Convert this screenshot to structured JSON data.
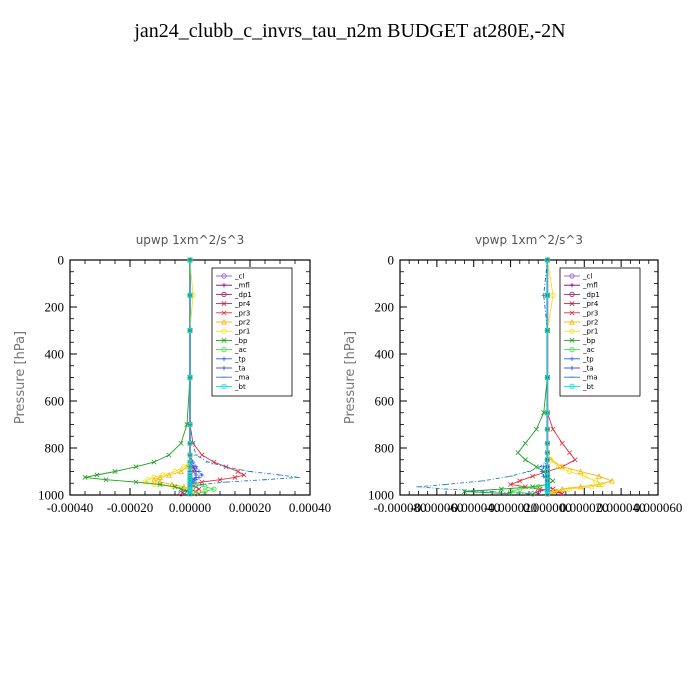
{
  "title": "jan24_clubb_c_invrs_tau_n2m  BUDGET at280E,-2N",
  "legend_entries": [
    "_cl",
    "_mfl",
    "_dp1",
    "_pr4",
    "_pr3",
    "_pr2",
    "_pr1",
    "_bp",
    "_ac",
    "_tp",
    "_ta",
    "_ma",
    "_bt"
  ],
  "series_colors": [
    "#9b59d0",
    "#800080",
    "#a0206a",
    "#c02040",
    "#e03040",
    "#ffb000",
    "#f0e020",
    "#20a020",
    "#40e040",
    "#2060ff",
    "#4040e0",
    "#2080c0",
    "#00e0e0"
  ],
  "chart_data": [
    {
      "type": "line",
      "title": "upwp   1xm^2/s^3",
      "ylabel": "Pressure [hPa]",
      "ylim": [
        1000,
        0
      ],
      "xlim": [
        -0.0004,
        0.0004
      ],
      "yticks": [
        "0",
        "200",
        "400",
        "600",
        "800",
        "1000"
      ],
      "xticks": [
        "-0.00040",
        "-0.00020",
        "0.00000",
        "0.00020",
        "0.00040"
      ],
      "legend_position": "top-right",
      "y": [
        0,
        150,
        300,
        500,
        700,
        780,
        830,
        860,
        880,
        900,
        915,
        925,
        935,
        945,
        955,
        965,
        975,
        985,
        995
      ],
      "series": [
        {
          "name": "_cl",
          "values": [
            0,
            0,
            0,
            0,
            0,
            0,
            0,
            0,
            0,
            0,
            0,
            0,
            0,
            0,
            0,
            0,
            0,
            0,
            0
          ]
        },
        {
          "name": "_mfl",
          "values": [
            0,
            0,
            0,
            0,
            0,
            0,
            0,
            0,
            0,
            0,
            0,
            0,
            0,
            0,
            0,
            0,
            0,
            0,
            0
          ]
        },
        {
          "name": "_dp1",
          "values": [
            0,
            0,
            0,
            0,
            0,
            0,
            0,
            0,
            0,
            0,
            0,
            0,
            0,
            0,
            0,
            0,
            0,
            -2e-05,
            -3e-05
          ]
        },
        {
          "name": "_pr4",
          "values": [
            0,
            0,
            0,
            0,
            0,
            0,
            0,
            0,
            1e-05,
            1e-05,
            0,
            0,
            0,
            0,
            0,
            0,
            0,
            2e-05,
            3e-05
          ]
        },
        {
          "name": "_pr3",
          "values": [
            0,
            0,
            0,
            0,
            0,
            1e-05,
            4e-05,
            8e-05,
            0.00012,
            0.00016,
            0.00018,
            0.00015,
            0.0001,
            4e-05,
            0,
            2e-05,
            3e-05,
            2e-05,
            1e-05
          ]
        },
        {
          "name": "_pr2",
          "values": [
            0,
            0,
            0,
            0,
            0,
            0,
            0,
            0,
            -1e-05,
            -3e-05,
            -7e-05,
            -0.0001,
            -0.00012,
            -0.0001,
            -6e-05,
            -2e-05,
            0,
            0,
            0
          ]
        },
        {
          "name": "_pr1",
          "values": [
            0,
            1e-05,
            0,
            0,
            0,
            0,
            0,
            0,
            -2e-05,
            -5e-05,
            -9e-05,
            -0.00012,
            -0.00014,
            -0.00015,
            -0.00012,
            -5e-05,
            0,
            1e-05,
            0
          ]
        },
        {
          "name": "_bp",
          "values": [
            0,
            0,
            0,
            0,
            -1e-05,
            -3e-05,
            -7e-05,
            -0.00012,
            -0.00018,
            -0.00025,
            -0.00031,
            -0.00035,
            -0.00028,
            -0.00018,
            -0.0001,
            -5e-05,
            -3e-05,
            -1e-05,
            0
          ]
        },
        {
          "name": "_ac",
          "values": [
            0,
            0,
            0,
            0,
            0,
            0,
            0,
            0,
            0,
            0,
            0,
            0,
            0,
            0,
            2e-05,
            5e-05,
            8e-05,
            5e-05,
            2e-05
          ]
        },
        {
          "name": "_tp",
          "values": [
            0,
            0,
            0,
            0,
            0,
            0,
            0,
            1e-05,
            2e-05,
            3e-05,
            4e-05,
            3e-05,
            2e-05,
            1e-05,
            0,
            0,
            0,
            0,
            0
          ]
        },
        {
          "name": "_ta",
          "values": [
            0,
            0,
            0,
            0,
            0,
            0,
            0,
            0,
            1e-05,
            2e-05,
            2e-05,
            2e-05,
            1e-05,
            0,
            0,
            0,
            0,
            0,
            0
          ]
        },
        {
          "name": "_ma",
          "values": [
            0,
            0,
            0,
            0,
            0,
            1e-05,
            2e-05,
            6e-05,
            0.00012,
            0.0002,
            0.0003,
            0.00036,
            0.00025,
            0.00012,
            4e-05,
            1e-05,
            0,
            0,
            0
          ]
        },
        {
          "name": "_bt",
          "values": [
            0,
            0,
            0,
            0,
            0,
            0,
            0,
            0,
            0,
            0,
            0,
            0,
            0,
            0,
            0,
            0,
            0,
            0,
            0
          ]
        }
      ]
    },
    {
      "type": "line",
      "title": "vpwp   1xm^2/s^3",
      "ylabel": "Pressure [hPa]",
      "ylim": [
        1000,
        0
      ],
      "xlim": [
        -8e-05,
        6e-05
      ],
      "yticks": [
        "0",
        "200",
        "400",
        "600",
        "800",
        "1000"
      ],
      "xticks": [
        "-0.000080",
        "-0.000060",
        "-0.000040",
        "-0.000020",
        "0.000000",
        "0.000020",
        "0.000040",
        "0.000060"
      ],
      "legend_position": "top-right",
      "y": [
        0,
        150,
        300,
        500,
        650,
        720,
        780,
        820,
        850,
        880,
        900,
        920,
        940,
        955,
        965,
        975,
        985,
        995
      ],
      "series": [
        {
          "name": "_cl",
          "values": [
            0,
            0,
            0,
            0,
            0,
            0,
            0,
            0,
            0,
            0,
            0,
            0,
            0,
            0,
            0,
            0,
            0,
            0
          ]
        },
        {
          "name": "_mfl",
          "values": [
            0,
            0,
            0,
            0,
            0,
            0,
            0,
            0,
            0,
            0,
            0,
            0,
            0,
            0,
            0,
            0,
            0,
            0
          ]
        },
        {
          "name": "_dp1",
          "values": [
            0,
            0,
            0,
            0,
            0,
            0,
            0,
            0,
            0,
            0,
            0,
            0,
            0,
            0,
            0,
            0,
            -5e-06,
            -8e-06
          ]
        },
        {
          "name": "_pr4",
          "values": [
            0,
            0,
            0,
            0,
            0,
            0,
            0,
            0,
            0,
            0,
            0,
            0,
            0,
            0,
            0,
            3e-06,
            6e-06,
            8e-06
          ]
        },
        {
          "name": "_pr3",
          "values": [
            0,
            0,
            0,
            0,
            0,
            3e-06,
            8e-06,
            1.2e-05,
            1.5e-05,
            8e-06,
            0,
            -8e-06,
            -1.5e-05,
            -2e-05,
            -1.2e-05,
            -4e-06,
            4e-06,
            8e-06
          ]
        },
        {
          "name": "_pr2",
          "values": [
            0,
            0,
            0,
            0,
            0,
            0,
            0,
            0,
            2e-06,
            8e-06,
            1.8e-05,
            2.8e-05,
            3.5e-05,
            2.8e-05,
            1.8e-05,
            8e-06,
            3e-06,
            0
          ]
        },
        {
          "name": "_pr1",
          "values": [
            0,
            3e-06,
            0,
            0,
            0,
            0,
            0,
            0,
            2e-06,
            6e-06,
            1.2e-05,
            2e-05,
            2.6e-05,
            3e-05,
            2.4e-05,
            1.2e-05,
            4e-06,
            0
          ]
        },
        {
          "name": "_bp",
          "values": [
            0,
            0,
            0,
            0,
            -2e-06,
            -6e-06,
            -1.2e-05,
            -1.6e-05,
            -1.2e-05,
            -6e-06,
            -2e-06,
            0,
            3e-06,
            0,
            -8e-06,
            -2.5e-05,
            -4.5e-05,
            -2e-05
          ]
        },
        {
          "name": "_ac",
          "values": [
            0,
            0,
            0,
            0,
            0,
            0,
            0,
            0,
            0,
            0,
            0,
            0,
            0,
            0,
            -5e-06,
            -1.5e-05,
            -2e-05,
            -8e-06
          ]
        },
        {
          "name": "_tp",
          "values": [
            0,
            -2e-06,
            0,
            0,
            0,
            0,
            0,
            0,
            0,
            -2e-06,
            -3e-06,
            -2e-06,
            0,
            0,
            0,
            0,
            0,
            0
          ]
        },
        {
          "name": "_ta",
          "values": [
            0,
            0,
            0,
            0,
            0,
            0,
            0,
            0,
            0,
            0,
            0,
            0,
            0,
            0,
            0,
            0,
            0,
            0
          ]
        },
        {
          "name": "_ma",
          "values": [
            0,
            0,
            0,
            0,
            0,
            0,
            0,
            0,
            0,
            -4e-06,
            -1e-05,
            -2e-05,
            -3.5e-05,
            -5.5e-05,
            -7e-05,
            -5.5e-05,
            -3e-05,
            -1e-05
          ]
        },
        {
          "name": "_bt",
          "values": [
            0,
            0,
            0,
            0,
            0,
            0,
            0,
            0,
            0,
            0,
            0,
            0,
            0,
            0,
            0,
            0,
            0,
            0
          ]
        }
      ]
    }
  ]
}
